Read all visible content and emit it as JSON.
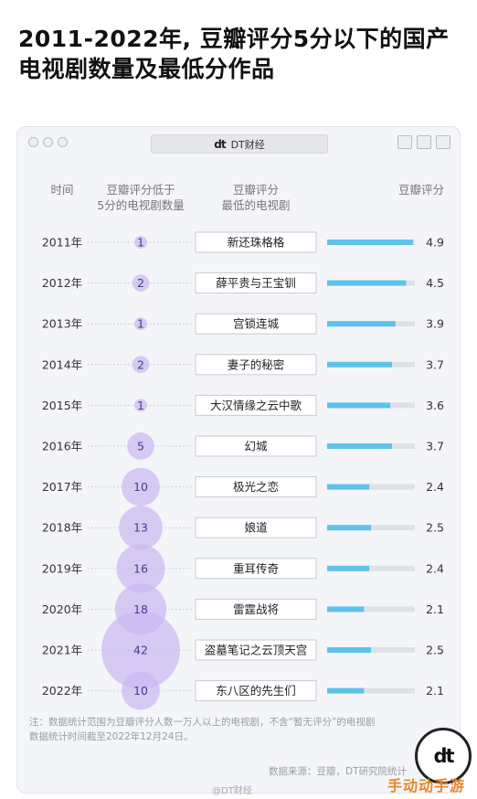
{
  "title": "2011-2022年, 豆瓣评分5分以下的国产电视剧数量及最低分作品",
  "window": {
    "tab_label": "DT财经",
    "tab_logo": "dt"
  },
  "chart_data": {
    "type": "table",
    "columns": {
      "year": "时间",
      "count": "豆瓣评分低于5分的电视剧数量",
      "title": "豆瓣评分最低的电视剧",
      "score": "豆瓣评分"
    },
    "column_lines": {
      "year": [
        "时间"
      ],
      "count": [
        "豆瓣评分低于",
        "5分的电视剧数量"
      ],
      "title": [
        "豆瓣评分",
        "最低的电视剧"
      ],
      "score": [
        "豆瓣评分"
      ]
    },
    "score_range": [
      0,
      5
    ],
    "rows": [
      {
        "year": "2011年",
        "count": 1,
        "title": "新还珠格格",
        "score": 4.9
      },
      {
        "year": "2012年",
        "count": 2,
        "title": "薛平贵与王宝钏",
        "score": 4.5
      },
      {
        "year": "2013年",
        "count": 1,
        "title": "宫锁连城",
        "score": 3.9
      },
      {
        "year": "2014年",
        "count": 2,
        "title": "妻子的秘密",
        "score": 3.7
      },
      {
        "year": "2015年",
        "count": 1,
        "title": "大汉情缘之云中歌",
        "score": 3.6
      },
      {
        "year": "2016年",
        "count": 5,
        "title": "幻城",
        "score": 3.7
      },
      {
        "year": "2017年",
        "count": 10,
        "title": "极光之恋",
        "score": 2.4
      },
      {
        "year": "2018年",
        "count": 13,
        "title": "娘道",
        "score": 2.5
      },
      {
        "year": "2019年",
        "count": 16,
        "title": "重耳传奇",
        "score": 2.4
      },
      {
        "year": "2020年",
        "count": 18,
        "title": "雷霆战将",
        "score": 2.1
      },
      {
        "year": "2021年",
        "count": 42,
        "title": "盗墓笔记之云顶天宫",
        "score": 2.5
      },
      {
        "year": "2022年",
        "count": 10,
        "title": "东八区的先生们",
        "score": 2.1
      }
    ],
    "colors": {
      "bubble": "#c9b8f2",
      "bubble_text": "#4a3a8c",
      "bar": "#5ec3ea",
      "bar_track": "#dfe1e8",
      "dots": "#c4c6ce"
    }
  },
  "footer": {
    "note_line1": "注：数据统计范围为豆瓣评分人数一万人以上的电视剧，不含“暂无评分”的电视剧",
    "note_line2": "数据统计时间截至2022年12月24日。",
    "source": "数据来源：豆瓣，DT研究院统计",
    "badge_logo": "dt",
    "weibo": "@DT财经",
    "watermark": "手动动手游"
  }
}
